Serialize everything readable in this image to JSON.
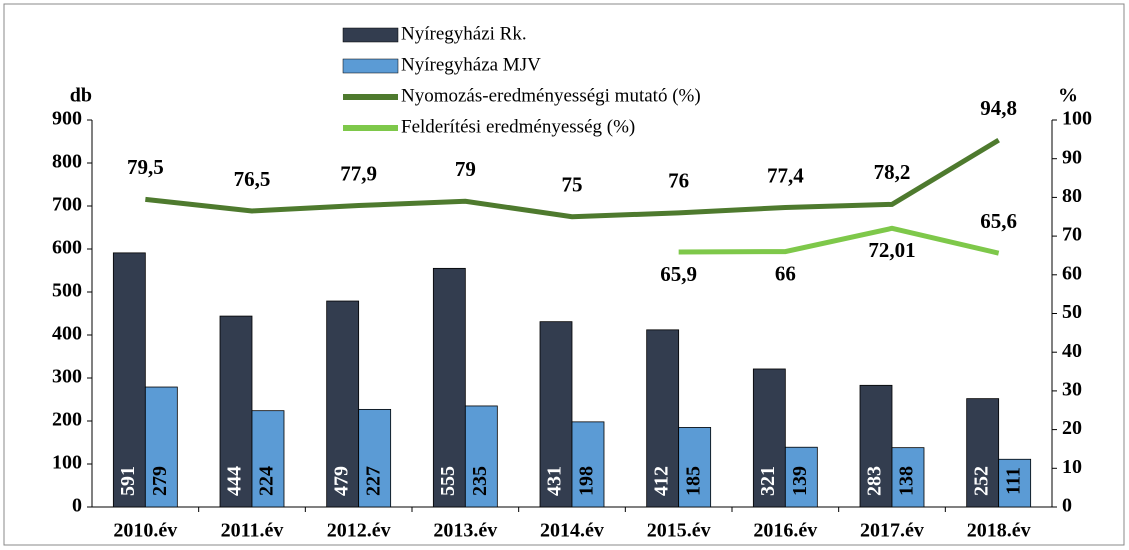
{
  "chart_data": {
    "type": "bar_line",
    "categories": [
      "2010.év",
      "2011.év",
      "2012.év",
      "2013.év",
      "2014.év",
      "2015.év",
      "2016.év",
      "2017.év",
      "2018.év"
    ],
    "ylabel": "db",
    "y2label": "%",
    "ylim": [
      0,
      900
    ],
    "yticks": [
      0,
      100,
      200,
      300,
      400,
      500,
      600,
      700,
      800,
      900
    ],
    "y2lim": [
      0,
      100
    ],
    "y2ticks": [
      0,
      10,
      20,
      30,
      40,
      50,
      60,
      70,
      80,
      90,
      100
    ],
    "series": [
      {
        "name": "Nyíregyházi Rk.",
        "type": "bar",
        "color": "#333d4f",
        "values": [
          591,
          444,
          479,
          555,
          431,
          412,
          321,
          283,
          252
        ]
      },
      {
        "name": "Nyíregyháza MJV",
        "type": "bar",
        "color": "#5b9bd5",
        "values": [
          279,
          224,
          227,
          235,
          198,
          185,
          139,
          138,
          111
        ]
      },
      {
        "name": "Nyomozás-eredményességi mutató (%)",
        "type": "line",
        "axis": "y2",
        "color": "#4e7a2e",
        "values": [
          79.5,
          76.5,
          77.9,
          79,
          75,
          76,
          77.4,
          78.2,
          94.8
        ],
        "value_labels": [
          "79,5",
          "76,5",
          "77,9",
          "79",
          "75",
          "76",
          "77,4",
          "78,2",
          "94,8"
        ]
      },
      {
        "name": "Felderítési eredményesség (%)",
        "type": "line",
        "axis": "y2",
        "color": "#7ec84a",
        "values": [
          null,
          null,
          null,
          null,
          null,
          65.9,
          66,
          72.01,
          65.6
        ],
        "value_labels": [
          null,
          null,
          null,
          null,
          null,
          "65,9",
          "66",
          "72,01",
          "65,6"
        ]
      }
    ]
  }
}
